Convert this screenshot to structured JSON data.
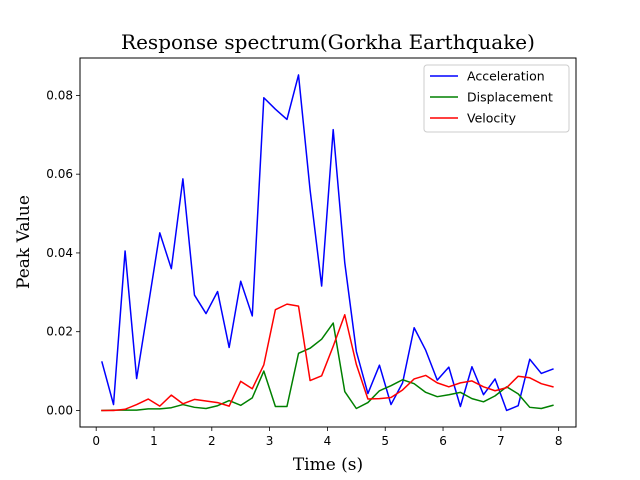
{
  "chart_data": {
    "type": "line",
    "title": "Response spectrum(Gorkha Earthquake)",
    "xlabel": "Time (s)",
    "ylabel": "Peak Value",
    "xlim": [
      -0.28,
      8.3
    ],
    "ylim": [
      -0.0042,
      0.0895
    ],
    "xticks": [
      0,
      1,
      2,
      3,
      4,
      5,
      6,
      7,
      8
    ],
    "yticks": [
      0.0,
      0.02,
      0.04,
      0.06,
      0.08
    ],
    "ytick_labels": [
      "0.00",
      "0.02",
      "0.04",
      "0.06",
      "0.08"
    ],
    "grid": false,
    "legend_position": "upper right",
    "x": [
      0.1,
      0.3,
      0.5,
      0.7,
      0.9,
      1.1,
      1.3,
      1.5,
      1.7,
      1.9,
      2.1,
      2.3,
      2.5,
      2.7,
      2.9,
      3.1,
      3.3,
      3.5,
      3.7,
      3.9,
      4.1,
      4.3,
      4.5,
      4.7,
      4.9,
      5.1,
      5.3,
      5.5,
      5.7,
      5.9,
      6.1,
      6.3,
      6.5,
      6.7,
      6.9,
      7.1,
      7.3,
      7.5,
      7.7,
      7.9
    ],
    "series": [
      {
        "name": "Acceleration",
        "color": "#0000ff",
        "values": [
          0.0123,
          0.0015,
          0.0405,
          0.0081,
          0.0265,
          0.0451,
          0.036,
          0.0588,
          0.0293,
          0.0246,
          0.0302,
          0.016,
          0.0328,
          0.024,
          0.0794,
          0.0765,
          0.0739,
          0.0852,
          0.056,
          0.0316,
          0.0713,
          0.0375,
          0.015,
          0.0043,
          0.0115,
          0.0015,
          0.007,
          0.021,
          0.0153,
          0.0077,
          0.011,
          0.001,
          0.0111,
          0.004,
          0.008,
          0.0,
          0.0012,
          0.013,
          0.0094,
          0.0105
        ]
      },
      {
        "name": "Displacement",
        "color": "#008000",
        "values": [
          0.0,
          0.0001,
          0.0001,
          0.0001,
          0.0004,
          0.0004,
          0.0007,
          0.0015,
          0.0008,
          0.0005,
          0.0012,
          0.0025,
          0.0013,
          0.0032,
          0.01,
          0.001,
          0.001,
          0.0145,
          0.0158,
          0.0181,
          0.0222,
          0.0048,
          0.0005,
          0.002,
          0.005,
          0.0063,
          0.0078,
          0.0068,
          0.0046,
          0.0035,
          0.004,
          0.0046,
          0.003,
          0.0022,
          0.0037,
          0.006,
          0.0042,
          0.0008,
          0.0005,
          0.0013
        ]
      },
      {
        "name": "Velocity",
        "color": "#ff0000",
        "values": [
          0.0,
          0.0,
          0.0003,
          0.0015,
          0.0029,
          0.0011,
          0.0039,
          0.0017,
          0.0028,
          0.0024,
          0.002,
          0.0011,
          0.0074,
          0.0055,
          0.0116,
          0.0256,
          0.027,
          0.0265,
          0.0076,
          0.0088,
          0.0163,
          0.0243,
          0.0117,
          0.0029,
          0.003,
          0.0033,
          0.0052,
          0.008,
          0.0089,
          0.007,
          0.006,
          0.007,
          0.0075,
          0.006,
          0.005,
          0.0058,
          0.0087,
          0.0083,
          0.0068,
          0.006
        ]
      }
    ]
  }
}
